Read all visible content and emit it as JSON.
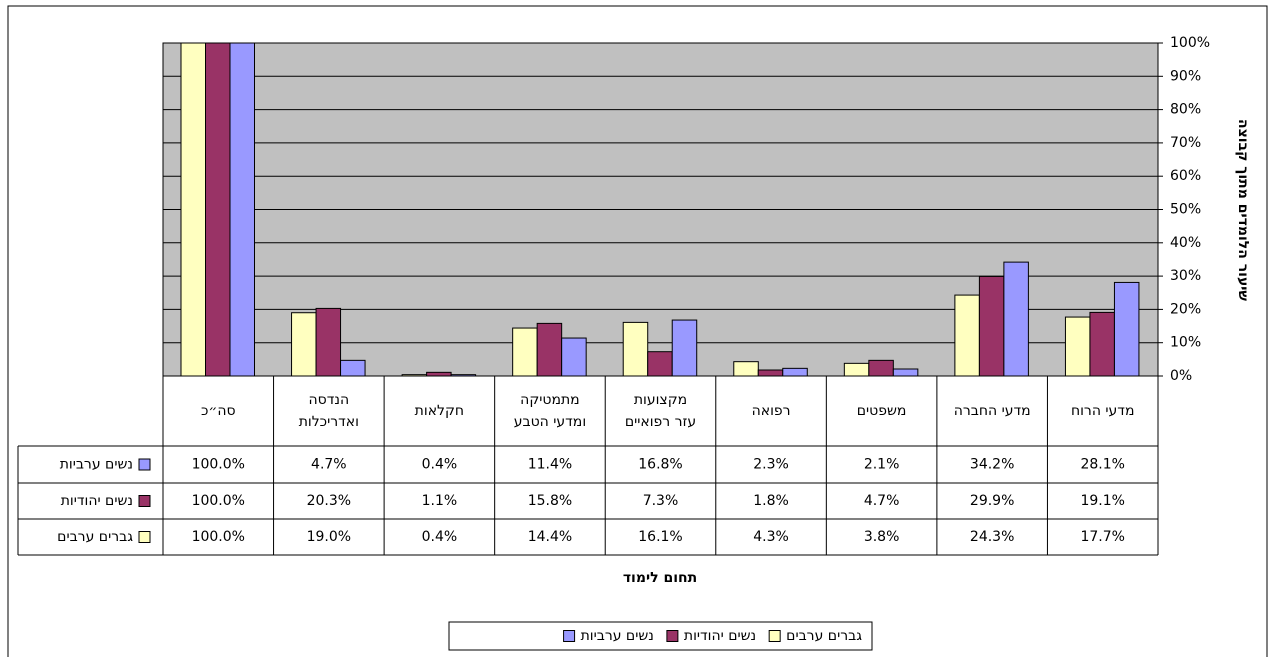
{
  "chart_data": {
    "type": "bar",
    "y_axis_label": "שיעור הלומדים מתוך קבוצה",
    "x_axis_label": "תחום לימוד",
    "categories": [
      [
        "מדעי הרוח"
      ],
      [
        "מדעי החברה"
      ],
      [
        "משפטים"
      ],
      [
        "רפואה"
      ],
      [
        "מקצועות",
        "עזר רפואיים"
      ],
      [
        "מתמטיקה",
        "ומדעי הטבע"
      ],
      [
        "חקלאות"
      ],
      [
        "הנדסה",
        "ואדריכלות"
      ],
      [
        "סה״כ"
      ]
    ],
    "series": [
      {
        "name": "גברים ערבים",
        "color": "#ffffc0",
        "values": [
          17.7,
          24.3,
          3.8,
          4.3,
          16.1,
          14.4,
          0.4,
          19.0,
          100.0
        ],
        "value_labels": [
          "17.7%",
          "24.3%",
          "3.8%",
          "4.3%",
          "16.1%",
          "14.4%",
          "0.4%",
          "19.0%",
          "100.0%"
        ]
      },
      {
        "name": "נשים יהודיות",
        "color": "#993366",
        "values": [
          19.1,
          29.9,
          4.7,
          1.8,
          7.3,
          15.8,
          1.1,
          20.3,
          100.0
        ],
        "value_labels": [
          "19.1%",
          "29.9%",
          "4.7%",
          "1.8%",
          "7.3%",
          "15.8%",
          "1.1%",
          "20.3%",
          "100.0%"
        ]
      },
      {
        "name": "נשים ערביות",
        "color": "#9999ff",
        "values": [
          28.1,
          34.2,
          2.1,
          2.3,
          16.8,
          11.4,
          0.4,
          4.7,
          100.0
        ],
        "value_labels": [
          "28.1%",
          "34.2%",
          "2.1%",
          "2.3%",
          "16.8%",
          "11.4%",
          "0.4%",
          "4.7%",
          "100.0%"
        ]
      }
    ],
    "ylim": [
      0,
      100
    ],
    "yticks": [
      {
        "value": 0,
        "label": "0%"
      },
      {
        "value": 10,
        "label": "10%"
      },
      {
        "value": 20,
        "label": "20%"
      },
      {
        "value": 30,
        "label": "30%"
      },
      {
        "value": 40,
        "label": "40%"
      },
      {
        "value": 50,
        "label": "50%"
      },
      {
        "value": 60,
        "label": "60%"
      },
      {
        "value": 70,
        "label": "70%"
      },
      {
        "value": 80,
        "label": "80%"
      },
      {
        "value": 90,
        "label": "90%"
      },
      {
        "value": 100,
        "label": "100%"
      }
    ],
    "grid": true,
    "plot_background": "#c0c0c0"
  }
}
